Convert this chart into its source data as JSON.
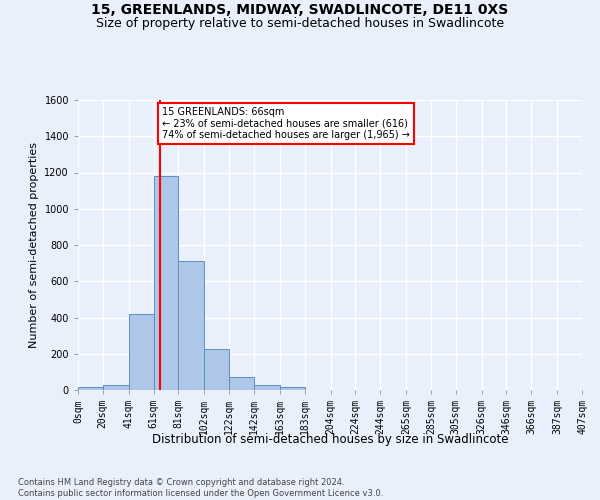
{
  "title1": "15, GREENLANDS, MIDWAY, SWADLINCOTE, DE11 0XS",
  "title2": "Size of property relative to semi-detached houses in Swadlincote",
  "xlabel": "Distribution of semi-detached houses by size in Swadlincote",
  "ylabel": "Number of semi-detached properties",
  "footnote": "Contains HM Land Registry data © Crown copyright and database right 2024.\nContains public sector information licensed under the Open Government Licence v3.0.",
  "bin_edges": [
    0,
    20,
    41,
    61,
    81,
    102,
    122,
    142,
    163,
    183,
    204,
    224,
    244,
    265,
    285,
    305,
    326,
    346,
    366,
    387,
    407
  ],
  "bin_labels": [
    "0sqm",
    "20sqm",
    "41sqm",
    "61sqm",
    "81sqm",
    "102sqm",
    "122sqm",
    "142sqm",
    "163sqm",
    "183sqm",
    "204sqm",
    "224sqm",
    "244sqm",
    "265sqm",
    "285sqm",
    "305sqm",
    "326sqm",
    "346sqm",
    "366sqm",
    "387sqm",
    "407sqm"
  ],
  "counts": [
    15,
    30,
    420,
    1180,
    710,
    225,
    70,
    30,
    15,
    0,
    0,
    0,
    0,
    0,
    0,
    0,
    0,
    0,
    0,
    0
  ],
  "bar_color": "#aec6e8",
  "bar_edge_color": "#5a8fc2",
  "vline_x": 66,
  "vline_color": "red",
  "annotation_text": "15 GREENLANDS: 66sqm\n← 23% of semi-detached houses are smaller (616)\n74% of semi-detached houses are larger (1,965) →",
  "annotation_box_color": "white",
  "annotation_box_edge_color": "red",
  "ylim": [
    0,
    1600
  ],
  "yticks": [
    0,
    200,
    400,
    600,
    800,
    1000,
    1200,
    1400,
    1600
  ],
  "bg_color": "#eaf0fb",
  "grid_color": "white",
  "title_fontsize": 10,
  "subtitle_fontsize": 9,
  "tick_fontsize": 7,
  "ylabel_fontsize": 8,
  "xlabel_fontsize": 8.5,
  "footnote_fontsize": 6,
  "annotation_fontsize": 7
}
